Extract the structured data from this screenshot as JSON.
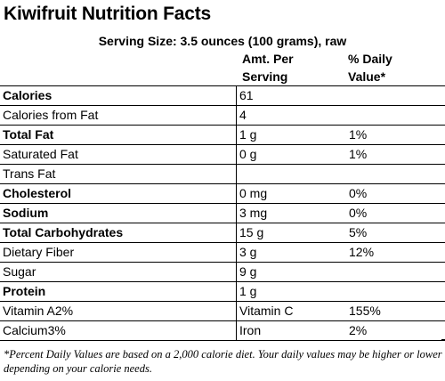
{
  "title": "Kiwifruit Nutrition Facts",
  "serving": "Serving Size: 3.5 ounces (100 grams), raw",
  "headers": {
    "amt_line1": "Amt. Per",
    "amt_line2": "Serving",
    "dv_line1": "% Daily",
    "dv_line2": "Value*"
  },
  "rows": [
    {
      "label": "Calories",
      "amount": "61",
      "dv": "",
      "bold": true
    },
    {
      "label": "Calories from Fat",
      "amount": "4",
      "dv": "",
      "bold": false
    },
    {
      "label": "Total Fat",
      "amount": "1 g",
      "dv": "1%",
      "bold": true
    },
    {
      "label": "Saturated Fat",
      "amount": "0 g",
      "dv": "1%",
      "bold": false
    },
    {
      "label": "Trans Fat",
      "amount": "",
      "dv": "",
      "bold": false
    },
    {
      "label": "Cholesterol",
      "amount": "0 mg",
      "dv": "0%",
      "bold": true
    },
    {
      "label": "Sodium",
      "amount": "3 mg",
      "dv": "0%",
      "bold": true
    },
    {
      "label": "Total Carbohydrates",
      "amount": "15 g",
      "dv": "5%",
      "bold": true
    },
    {
      "label": "Dietary Fiber",
      "amount": "3 g",
      "dv": "12%",
      "bold": false
    },
    {
      "label": "Sugar",
      "amount": "9 g",
      "dv": "",
      "bold": false
    },
    {
      "label": "Protein",
      "amount": "1 g",
      "dv": "",
      "bold": true
    },
    {
      "label": "Vitamin A2%",
      "amount": "Vitamin C",
      "dv": "155%",
      "bold": false
    },
    {
      "label": "Calcium3%",
      "amount": "Iron",
      "dv": "2%",
      "bold": false
    }
  ],
  "footnote": "*Percent Daily Values are based on a 2,000 calorie diet. Your daily values may be higher or lower depending on your calorie needs."
}
